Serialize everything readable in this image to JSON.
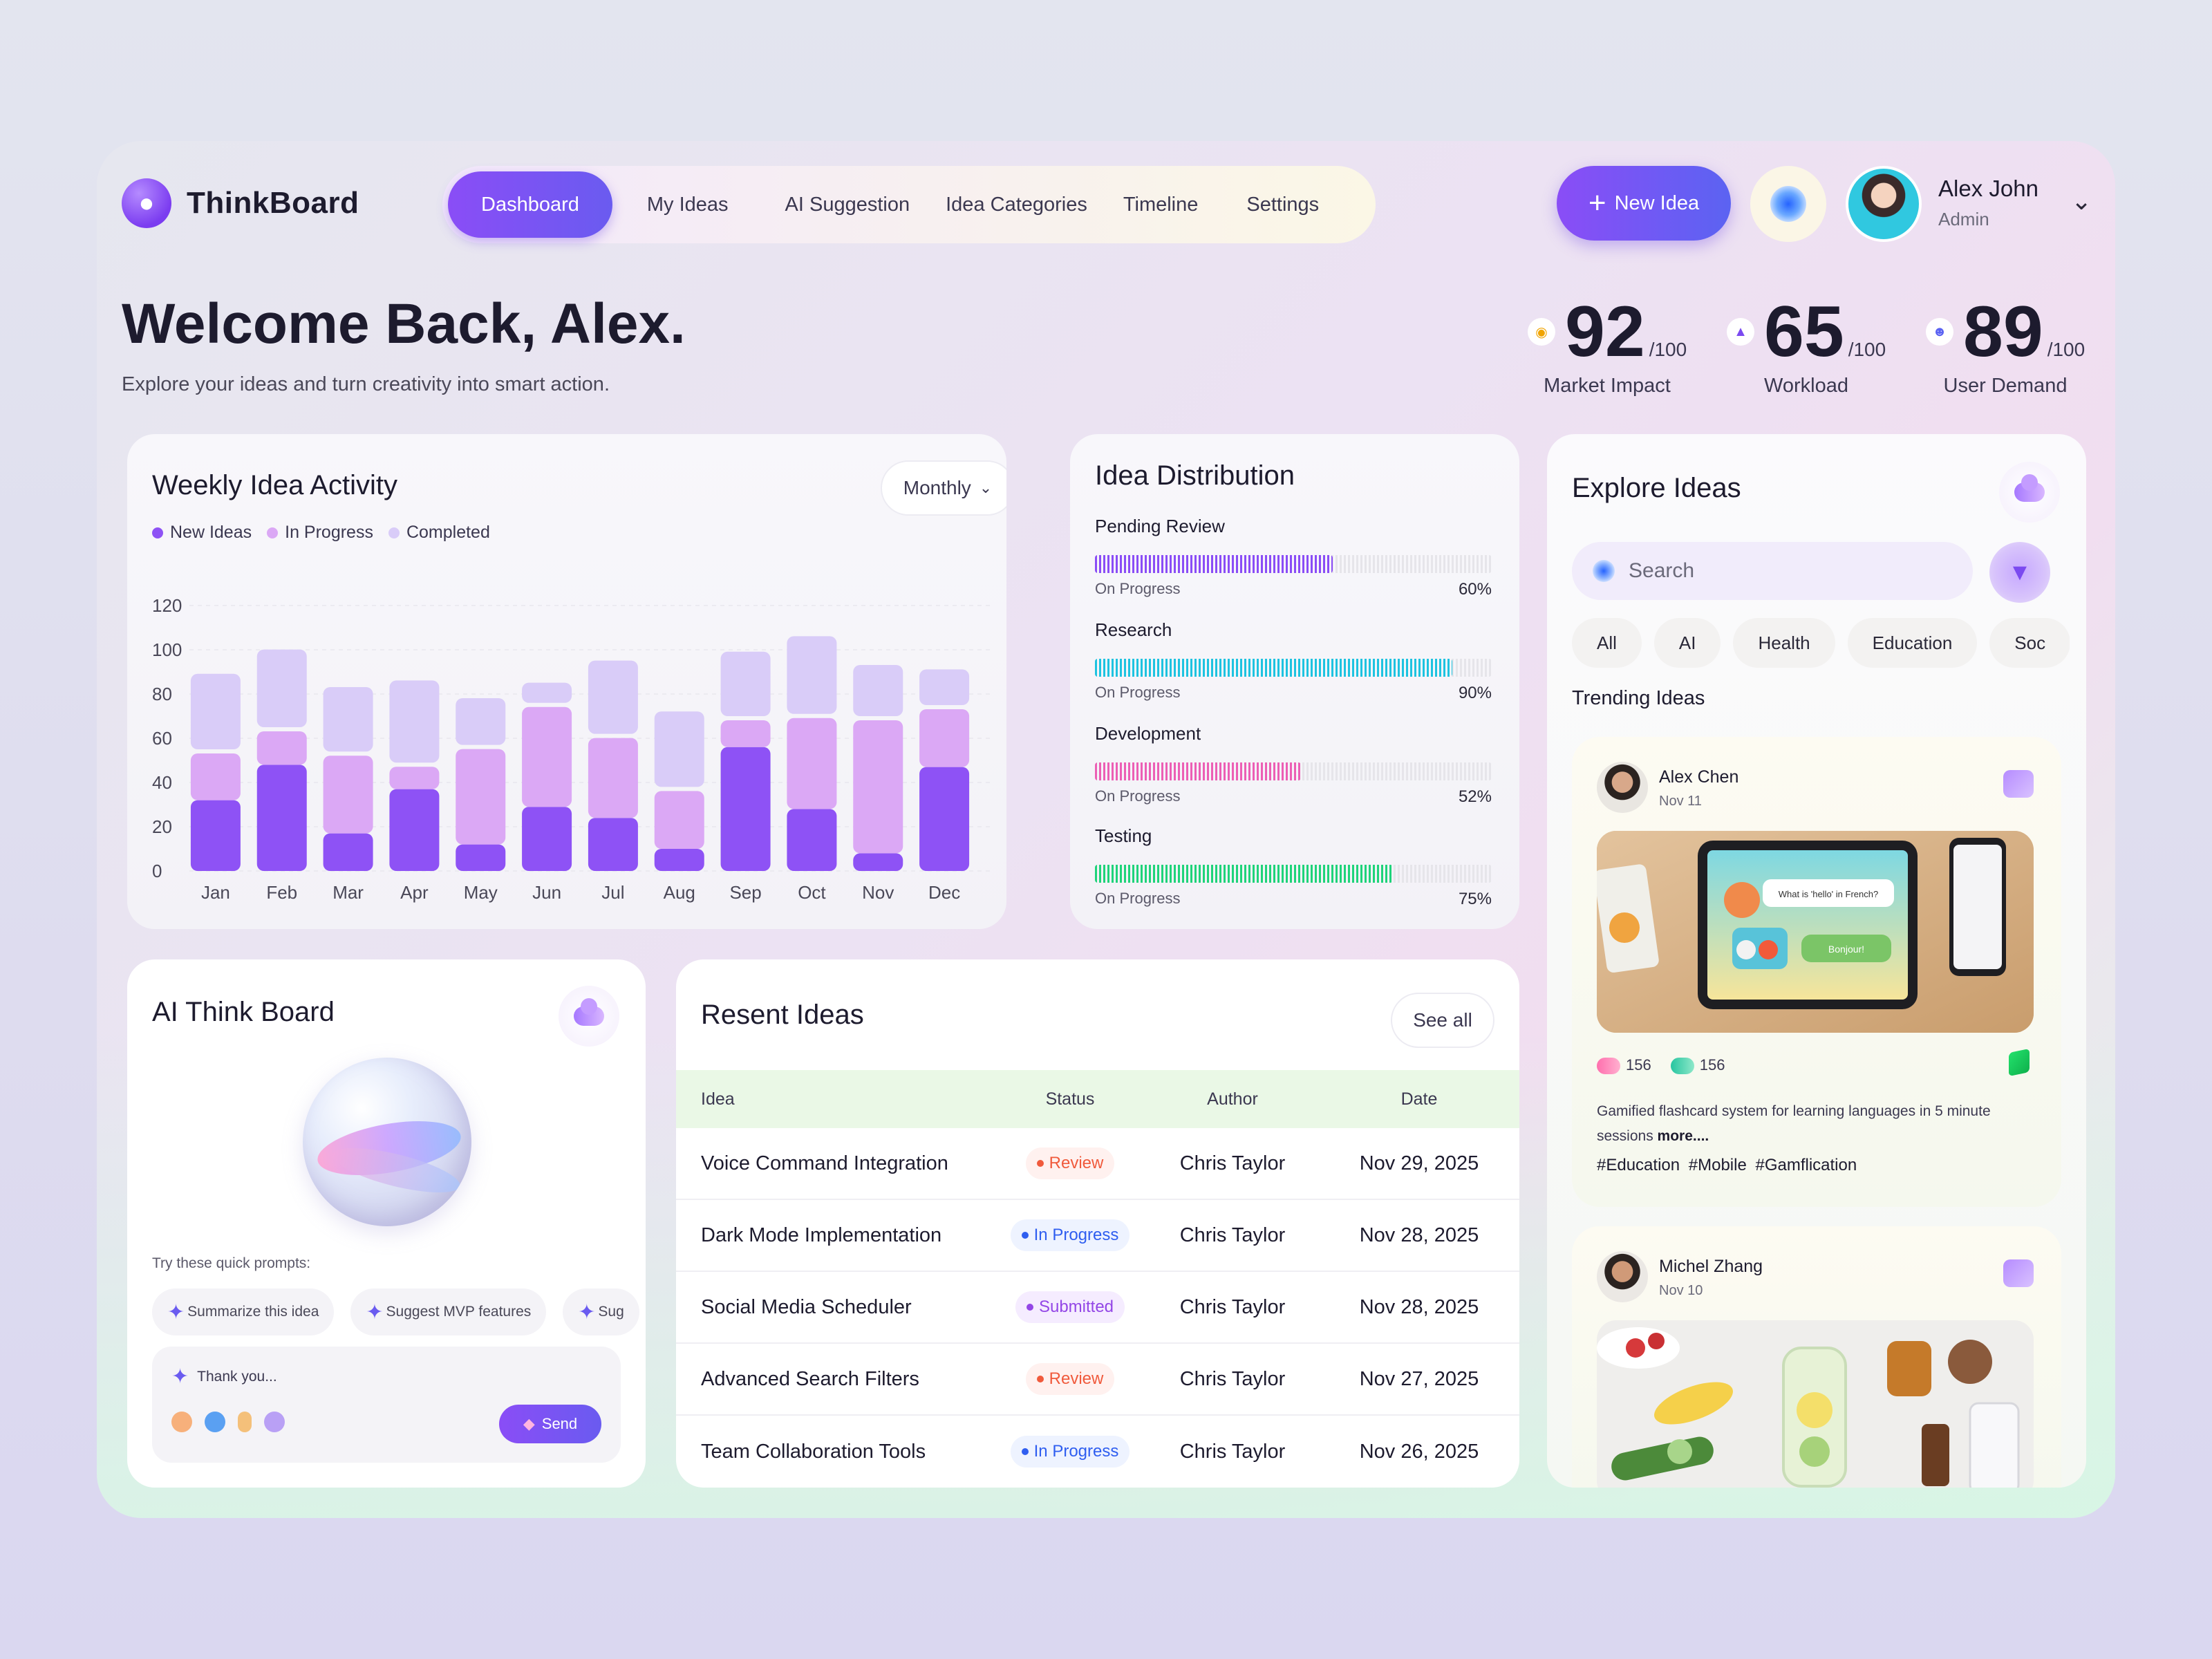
{
  "app": {
    "name": "ThinkBoard"
  },
  "nav": {
    "items": [
      {
        "label": "Dashboard",
        "active": true
      },
      {
        "label": "My Ideas"
      },
      {
        "label": "AI Suggestion"
      },
      {
        "label": "Idea Categories"
      },
      {
        "label": "Timeline"
      },
      {
        "label": "Settings"
      }
    ]
  },
  "header": {
    "new_idea_label": "New Idea",
    "user": {
      "name": "Alex John",
      "role": "Admin"
    }
  },
  "welcome": {
    "title": "Welcome Back, Alex.",
    "subtitle": "Explore your ideas and turn creativity into smart action."
  },
  "stats": [
    {
      "value": "92",
      "max": "/100",
      "label": "Market Impact",
      "icon": "location-pin-icon"
    },
    {
      "value": "65",
      "max": "/100",
      "label": "Workload",
      "icon": "person-pyramid-icon"
    },
    {
      "value": "89",
      "max": "/100",
      "label": "User Demand",
      "icon": "user-icon"
    }
  ],
  "activity": {
    "title": "Weekly Idea Activity",
    "period_label": "Monthly",
    "colors": {
      "new": "#8e52f5",
      "progress": "#dba8f5",
      "completed": "#d9ccf8"
    }
  },
  "chart_data": {
    "type": "bar",
    "stacked": true,
    "categories": [
      "Jan",
      "Feb",
      "Mar",
      "Apr",
      "May",
      "Jun",
      "Jul",
      "Aug",
      "Sep",
      "Oct",
      "Nov",
      "Dec"
    ],
    "series": [
      {
        "name": "New Ideas",
        "values": [
          32,
          48,
          17,
          37,
          12,
          29,
          24,
          10,
          56,
          28,
          8,
          47
        ]
      },
      {
        "name": "In Progress",
        "values": [
          23,
          17,
          37,
          12,
          45,
          47,
          38,
          28,
          14,
          43,
          62,
          28
        ]
      },
      {
        "name": "Completed",
        "values": [
          36,
          37,
          31,
          39,
          23,
          11,
          35,
          36,
          31,
          37,
          25,
          18
        ]
      }
    ],
    "yticks": [
      0,
      20,
      40,
      60,
      80,
      100,
      120
    ],
    "ylim": [
      0,
      120
    ],
    "grid": true,
    "legend": "top-left"
  },
  "distribution": {
    "title": "Idea Distribution",
    "items": [
      {
        "name": "Pending Review",
        "status": "On Progress",
        "percent": 60,
        "pct_label": "60%",
        "color": "#8a4df6"
      },
      {
        "name": "Research",
        "status": "On Progress",
        "percent": 90,
        "pct_label": "90%",
        "color": "#1ec3e0"
      },
      {
        "name": "Development",
        "status": "On Progress",
        "percent": 52,
        "pct_label": "52%",
        "color": "#ec5fb5"
      },
      {
        "name": "Testing",
        "status": "On Progress",
        "percent": 75,
        "pct_label": "75%",
        "color": "#1fd37a"
      }
    ]
  },
  "explore": {
    "title": "Explore Ideas",
    "search_placeholder": "Search",
    "chips": [
      "All",
      "AI",
      "Health",
      "Education",
      "Soc"
    ],
    "trending_label": "Trending Ideas",
    "cards": [
      {
        "author": "Alex Chen",
        "date": "Nov 11",
        "likes": "156",
        "shares": "156",
        "description": "Gamified flashcard system for learning languages in 5 minute sessions",
        "more": "more....",
        "tags": "#Education #Mobile  #Gamflication",
        "image_text": "What is 'hello' in French?",
        "image_answer": "Bonjour!"
      },
      {
        "author": "Michel Zhang",
        "date": "Nov 10"
      }
    ]
  },
  "ai_board": {
    "title": "AI Think Board",
    "prompts_label": "Try these quick prompts:",
    "prompts": [
      "Summarize this idea",
      "Suggest MVP features",
      "Sug"
    ],
    "input_text": "Thank you...",
    "send_label": "Send"
  },
  "recent": {
    "title": "Resent Ideas",
    "see_all_label": "See all",
    "columns": {
      "idea": "Idea",
      "status": "Status",
      "author": "Author",
      "date": "Date"
    },
    "rows": [
      {
        "idea": "Voice Command Integration",
        "status": "Review",
        "status_kind": "review",
        "author": "Chris Taylor",
        "date": "Nov 29, 2025"
      },
      {
        "idea": "Dark Mode Implementation",
        "status": "In Progress",
        "status_kind": "progress",
        "author": "Chris Taylor",
        "date": "Nov 28, 2025"
      },
      {
        "idea": "Social Media Scheduler",
        "status": "Submitted",
        "status_kind": "submitted",
        "author": "Chris Taylor",
        "date": "Nov 28, 2025"
      },
      {
        "idea": "Advanced Search Filters",
        "status": "Review",
        "status_kind": "review",
        "author": "Chris Taylor",
        "date": "Nov 27, 2025"
      },
      {
        "idea": "Team Collaboration Tools",
        "status": "In Progress",
        "status_kind": "progress",
        "author": "Chris Taylor",
        "date": "Nov 26, 2025"
      }
    ]
  }
}
